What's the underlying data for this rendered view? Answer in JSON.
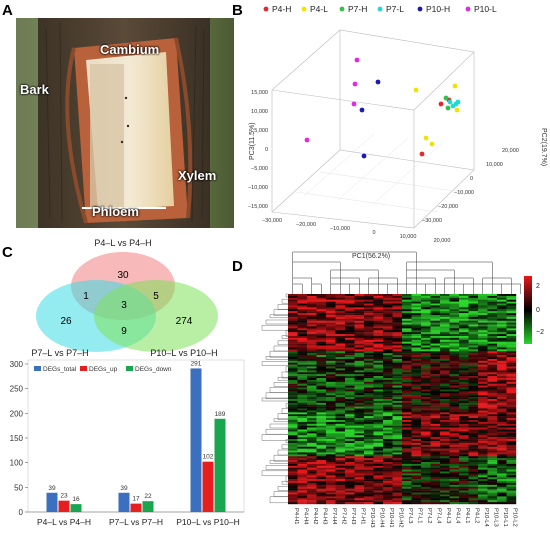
{
  "panels": {
    "a": "A",
    "b": "B",
    "c": "C",
    "d": "D"
  },
  "photo": {
    "labels": {
      "bark": "Bark",
      "cambium": "Cambium",
      "phloem": "Phloem",
      "xylem": "Xylem"
    }
  },
  "pca": {
    "legend": [
      {
        "label": "P4-H",
        "color": "#e8262b"
      },
      {
        "label": "P4-L",
        "color": "#f2e200"
      },
      {
        "label": "P7-H",
        "color": "#33c14a"
      },
      {
        "label": "P7-L",
        "color": "#22d8d4"
      },
      {
        "label": "P10-H",
        "color": "#1c1ab0"
      },
      {
        "label": "P10-L",
        "color": "#e22ae0"
      }
    ],
    "x_axis_label": "PC1(56.2%)",
    "y_axis_label": "PC2(19.7%)",
    "z_axis_label": "PC3(11.5%)",
    "x_ticks": [
      "−30,000",
      "−20,000",
      "−10,000",
      "0",
      "10,000",
      "20,000"
    ],
    "y_ticks": [
      "20,000",
      "10,000",
      "0",
      "−10,000",
      "−20,000",
      "−30,000"
    ],
    "z_ticks": [
      "15,000",
      "10,000",
      "5,000",
      "0",
      "−5,000",
      "−10,000",
      "−15,000"
    ]
  },
  "venn": {
    "sets": [
      "P4–L vs P4–H",
      "P7–L vs P7–H",
      "P10–L vs P10–H"
    ],
    "regions": {
      "a_only": "30",
      "b_only": "26",
      "c_only": "274",
      "ab": "1",
      "ac": "5",
      "bc": "9",
      "abc": "3"
    }
  },
  "chart_data": {
    "type": "bar",
    "categories": [
      "P4–L vs P4–H",
      "P7–L vs P7–H",
      "P10–L vs P10–H"
    ],
    "series": [
      {
        "name": "DEGs_total",
        "color": "#3b6fc0",
        "values": [
          39,
          39,
          291
        ]
      },
      {
        "name": "DEGs_up",
        "color": "#e51f1f",
        "values": [
          23,
          17,
          102
        ]
      },
      {
        "name": "DEGs_down",
        "color": "#1aa64e",
        "values": [
          16,
          22,
          189
        ]
      }
    ],
    "ylim": [
      0,
      300
    ],
    "y_ticks": [
      "0",
      "50",
      "100",
      "150",
      "200",
      "250",
      "300"
    ],
    "legend_position": "top-left"
  },
  "heatmap": {
    "color_scale": {
      "high": "#e8181c",
      "mid": "#000000",
      "low": "#2bd62b"
    },
    "scale_ticks": [
      "2",
      "0",
      "−2"
    ],
    "columns": [
      "P4-H1",
      "P4-H4",
      "P4-H2",
      "P4-H3",
      "P7-H4",
      "P7-H2",
      "P7-H3",
      "P7-H1",
      "P10-H3",
      "P10-H4",
      "P10-H1",
      "P10-H2",
      "P7-L3",
      "P7-L1",
      "P7-L2",
      "P7-L4",
      "P4-L3",
      "P4-L4",
      "P4-L1",
      "P4-L2",
      "P10-L4",
      "P10-L3",
      "P10-L1",
      "P10-L2"
    ]
  }
}
